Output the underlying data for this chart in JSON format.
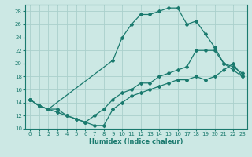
{
  "line1_x": [
    0,
    1,
    2,
    3,
    4,
    5,
    6,
    7,
    8,
    9,
    10,
    11,
    12,
    13,
    14,
    15,
    16,
    17,
    18,
    19,
    20,
    21,
    22,
    23
  ],
  "line1_y": [
    14.5,
    13.5,
    13.0,
    13.0,
    12.0,
    11.5,
    11.0,
    10.5,
    10.5,
    13.0,
    14.0,
    15.0,
    15.5,
    16.0,
    16.5,
    17.0,
    17.5,
    17.5,
    18.0,
    17.5,
    18.0,
    19.0,
    20.0,
    18.0
  ],
  "line2_x": [
    0,
    1,
    2,
    3,
    4,
    5,
    6,
    7,
    8,
    9,
    10,
    11,
    12,
    13,
    14,
    15,
    16,
    17,
    18,
    19,
    20,
    21,
    22,
    23
  ],
  "line2_y": [
    14.5,
    13.5,
    13.0,
    12.5,
    12.0,
    11.5,
    11.0,
    12.0,
    13.0,
    14.5,
    15.5,
    16.0,
    17.0,
    17.0,
    18.0,
    18.5,
    19.0,
    19.5,
    22.0,
    22.0,
    22.0,
    20.0,
    19.5,
    18.5
  ],
  "line3_x": [
    0,
    1,
    2,
    9,
    10,
    11,
    12,
    13,
    14,
    15,
    16,
    17,
    18,
    19,
    20,
    21,
    22,
    23
  ],
  "line3_y": [
    14.5,
    13.5,
    13.0,
    20.5,
    24.0,
    26.0,
    27.5,
    27.5,
    28.0,
    28.5,
    28.5,
    26.0,
    26.5,
    24.5,
    22.5,
    20.0,
    19.0,
    18.0
  ],
  "color": "#1a7a6e",
  "bg_color": "#cce8e4",
  "grid_color": "#aad0cc",
  "xlim": [
    -0.5,
    23.5
  ],
  "ylim": [
    10,
    29
  ],
  "xlabel": "Humidex (Indice chaleur)",
  "xticks": [
    0,
    1,
    2,
    3,
    4,
    5,
    6,
    7,
    8,
    9,
    10,
    11,
    12,
    13,
    14,
    15,
    16,
    17,
    18,
    19,
    20,
    21,
    22,
    23
  ],
  "yticks": [
    10,
    12,
    14,
    16,
    18,
    20,
    22,
    24,
    26,
    28
  ],
  "marker": "D",
  "markersize": 2.0,
  "linewidth": 0.9
}
